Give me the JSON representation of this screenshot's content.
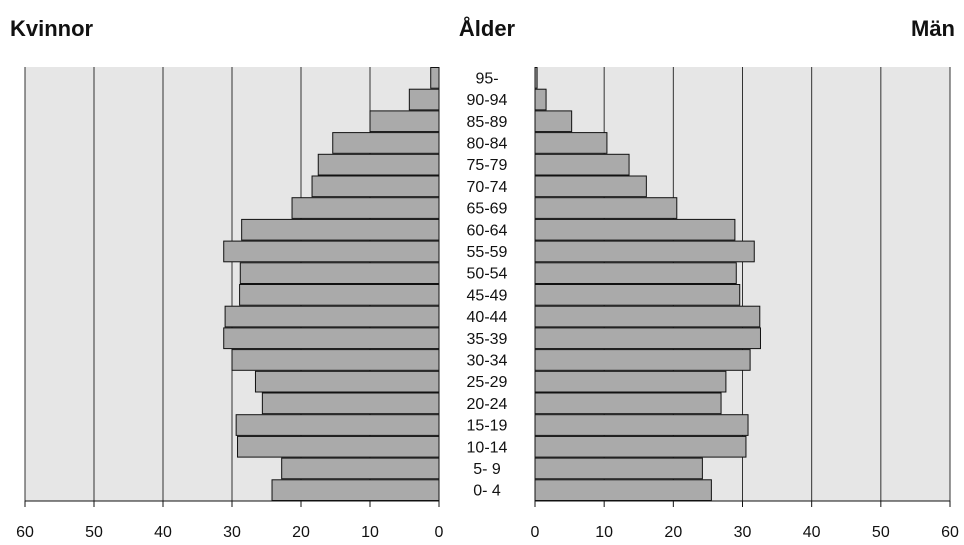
{
  "chart_data": {
    "type": "bar",
    "orientation": "horizontal",
    "layout": "population-pyramid",
    "left_title": "Kvinnor",
    "center_title": "Ålder",
    "right_title": "Män",
    "categories": [
      "0- 4",
      "5- 9",
      "10-14",
      "15-19",
      "20-24",
      "25-29",
      "30-34",
      "35-39",
      "40-44",
      "45-49",
      "50-54",
      "55-59",
      "60-64",
      "65-69",
      "70-74",
      "75-79",
      "80-84",
      "85-89",
      "90-94",
      "95-"
    ],
    "series": [
      {
        "name": "Kvinnor",
        "side": "left",
        "values": [
          24.2,
          22.8,
          29.2,
          29.4,
          25.6,
          26.6,
          30.0,
          31.2,
          31.0,
          28.9,
          28.8,
          31.2,
          28.6,
          21.3,
          18.4,
          17.5,
          15.4,
          10.0,
          4.3,
          1.2
        ]
      },
      {
        "name": "Män",
        "side": "right",
        "values": [
          25.5,
          24.2,
          30.5,
          30.8,
          26.9,
          27.6,
          31.1,
          32.6,
          32.5,
          29.6,
          29.1,
          31.7,
          28.9,
          20.5,
          16.1,
          13.6,
          10.4,
          5.3,
          1.6,
          0.3
        ]
      }
    ],
    "xlim": [
      0,
      60
    ],
    "ticks": [
      0,
      10,
      20,
      30,
      40,
      50,
      60
    ],
    "grid": true,
    "colors": {
      "plot_background": "#e6e6e6",
      "bar_fill": "#aaaaaa",
      "bar_stroke": "#111111",
      "grid": "#333333"
    }
  }
}
